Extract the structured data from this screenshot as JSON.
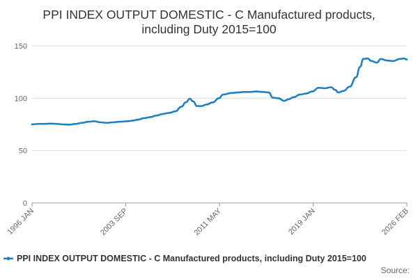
{
  "chart_data": {
    "type": "line",
    "title_lines": [
      "PPI INDEX OUTPUT DOMESTIC - C Manufactured products,",
      "including Duty 2015=100"
    ],
    "xlabel": "",
    "ylabel": "",
    "x_tick_labels": [
      "1996 JAN",
      "2003 SEP",
      "2011 MAY",
      "2019 JAN",
      "2026 FEB"
    ],
    "y_ticks": [
      0,
      50,
      100,
      150
    ],
    "ylim": [
      0,
      150
    ],
    "xlim": [
      "1996-01",
      "2026-02"
    ],
    "grid": true,
    "legend_position": "bottom",
    "source_label": "Source:",
    "series": [
      {
        "name": "PPI INDEX OUTPUT DOMESTIC - C Manufactured products, including Duty 2015=100",
        "color": "#1f7fbf",
        "points": [
          [
            "1996-01",
            75.0
          ],
          [
            "1996-07",
            75.5
          ],
          [
            "1997-01",
            75.5
          ],
          [
            "1997-07",
            75.8
          ],
          [
            "1998-01",
            75.5
          ],
          [
            "1998-07",
            75.0
          ],
          [
            "1999-01",
            74.8
          ],
          [
            "1999-07",
            75.5
          ],
          [
            "2000-01",
            76.5
          ],
          [
            "2000-07",
            77.5
          ],
          [
            "2001-01",
            78.0
          ],
          [
            "2001-07",
            77.0
          ],
          [
            "2002-01",
            76.5
          ],
          [
            "2002-07",
            77.0
          ],
          [
            "2003-01",
            77.5
          ],
          [
            "2003-09",
            78.0
          ],
          [
            "2004-01",
            78.5
          ],
          [
            "2004-07",
            79.5
          ],
          [
            "2005-01",
            81.0
          ],
          [
            "2005-07",
            82.0
          ],
          [
            "2006-01",
            83.5
          ],
          [
            "2006-07",
            85.0
          ],
          [
            "2007-01",
            86.0
          ],
          [
            "2007-07",
            87.5
          ],
          [
            "2008-01",
            92.0
          ],
          [
            "2008-05",
            96.0
          ],
          [
            "2008-09",
            99.5
          ],
          [
            "2008-12",
            97.0
          ],
          [
            "2009-04",
            92.5
          ],
          [
            "2009-08",
            92.5
          ],
          [
            "2010-01",
            94.0
          ],
          [
            "2010-07",
            96.0
          ],
          [
            "2011-01",
            100.0
          ],
          [
            "2011-05",
            103.5
          ],
          [
            "2012-01",
            105.0
          ],
          [
            "2012-07",
            105.5
          ],
          [
            "2013-01",
            106.0
          ],
          [
            "2013-07",
            106.0
          ],
          [
            "2014-01",
            106.5
          ],
          [
            "2014-07",
            106.0
          ],
          [
            "2015-01",
            105.5
          ],
          [
            "2015-05",
            100.5
          ],
          [
            "2015-10",
            100.0
          ],
          [
            "2016-04",
            97.5
          ],
          [
            "2016-08",
            99.0
          ],
          [
            "2017-01",
            101.0
          ],
          [
            "2017-07",
            103.5
          ],
          [
            "2018-01",
            104.5
          ],
          [
            "2018-07",
            106.5
          ],
          [
            "2019-01",
            110.0
          ],
          [
            "2019-07",
            109.5
          ],
          [
            "2020-01",
            110.5
          ],
          [
            "2020-05",
            108.0
          ],
          [
            "2020-08",
            105.5
          ],
          [
            "2021-01",
            107.0
          ],
          [
            "2021-07",
            111.0
          ],
          [
            "2022-01",
            120.0
          ],
          [
            "2022-05",
            130.0
          ],
          [
            "2022-08",
            137.5
          ],
          [
            "2022-12",
            138.0
          ],
          [
            "2023-04",
            135.5
          ],
          [
            "2023-09",
            134.0
          ],
          [
            "2024-01",
            137.5
          ],
          [
            "2024-07",
            136.0
          ],
          [
            "2025-01",
            135.5
          ],
          [
            "2025-07",
            137.5
          ],
          [
            "2025-11",
            138.0
          ],
          [
            "2026-02",
            137.0
          ]
        ]
      }
    ]
  }
}
